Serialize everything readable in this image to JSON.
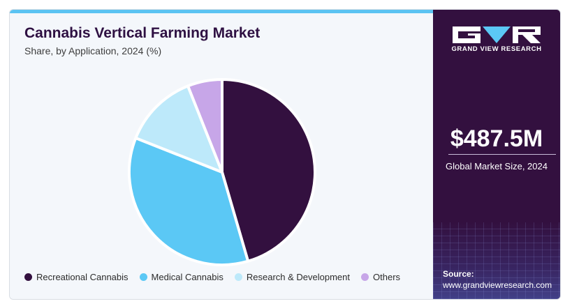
{
  "chart_data": {
    "type": "pie",
    "title": "Cannabis Vertical Farming Market",
    "subtitle": "Share, by Application, 2024 (%)",
    "categories": [
      "Recreational Cannabis",
      "Medical Cannabis",
      "Research & Development",
      "Others"
    ],
    "values": [
      45.5,
      35.5,
      13.0,
      6.0
    ],
    "colors": [
      "#33103f",
      "#5bc8f5",
      "#bde9fa",
      "#c7a6e8"
    ],
    "legend_position": "bottom"
  },
  "brand": {
    "name": "GRAND VIEW RESEARCH",
    "icon": "gvr-logo"
  },
  "stat": {
    "value": "$487.5M",
    "label": "Global Market Size, 2024"
  },
  "source": {
    "title": "Source:",
    "url": "www.grandviewresearch.com"
  }
}
